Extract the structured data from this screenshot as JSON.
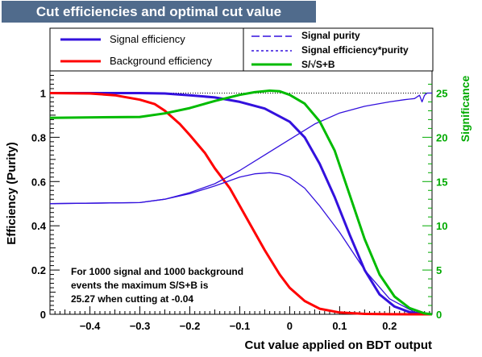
{
  "chart_data": {
    "type": "line",
    "title": "Cut efficiencies and optimal cut value",
    "xlabel": "Cut value applied on BDT output",
    "ylabel": "Efficiency (Purity)",
    "y2label": "Significance",
    "xlim": [
      -0.48,
      0.285
    ],
    "ylim": [
      0,
      1.1
    ],
    "y2lim": [
      0,
      27.5
    ],
    "x_ticks": [
      -0.4,
      -0.3,
      -0.2,
      -0.1,
      0,
      0.1,
      0.2
    ],
    "x_tick_labels": [
      "−0.4",
      "−0.3",
      "−0.2",
      "−0.1",
      "0",
      "0.1",
      "0.2"
    ],
    "y_ticks": [
      0,
      0.2,
      0.4,
      0.6,
      0.8,
      1
    ],
    "y_tick_labels": [
      "0",
      "0.2",
      "0.4",
      "0.6",
      "0.8",
      "1"
    ],
    "y2_ticks": [
      0,
      5,
      10,
      15,
      20,
      25
    ],
    "y2_tick_labels": [
      "0",
      "5",
      "10",
      "15",
      "20",
      "25"
    ],
    "colors": {
      "title_box": "#506b8c",
      "signal": "#3311dd",
      "background": "#ff0000",
      "significance": "#00bb00",
      "significance_axis": "#00aa00",
      "ref_line": "#000000"
    },
    "series": [
      {
        "name": "Signal efficiency",
        "style": "solid-thick",
        "axis": "left",
        "x": [
          -0.48,
          -0.4,
          -0.3,
          -0.25,
          -0.2,
          -0.15,
          -0.1,
          -0.05,
          0,
          0.03,
          0.06,
          0.09,
          0.12,
          0.15,
          0.18,
          0.21,
          0.24,
          0.26,
          0.285
        ],
        "values": [
          1.0,
          1.0,
          1.0,
          0.998,
          0.99,
          0.98,
          0.96,
          0.93,
          0.87,
          0.8,
          0.68,
          0.53,
          0.36,
          0.2,
          0.09,
          0.035,
          0.01,
          0.003,
          0
        ]
      },
      {
        "name": "Background efficiency",
        "style": "solid-thick",
        "axis": "left",
        "x": [
          -0.48,
          -0.4,
          -0.35,
          -0.3,
          -0.27,
          -0.25,
          -0.22,
          -0.2,
          -0.17,
          -0.15,
          -0.12,
          -0.1,
          -0.08,
          -0.05,
          -0.02,
          0,
          0.03,
          0.06,
          0.1,
          0.15,
          0.2,
          0.285
        ],
        "values": [
          1.0,
          0.998,
          0.99,
          0.97,
          0.95,
          0.92,
          0.86,
          0.81,
          0.73,
          0.66,
          0.57,
          0.49,
          0.41,
          0.29,
          0.18,
          0.12,
          0.06,
          0.025,
          0.008,
          0.002,
          0.0005,
          0
        ]
      },
      {
        "name": "Signal purity",
        "style": "dashed",
        "axis": "left",
        "x": [
          -0.48,
          -0.3,
          -0.25,
          -0.2,
          -0.15,
          -0.1,
          -0.05,
          0,
          0.05,
          0.1,
          0.15,
          0.2,
          0.23,
          0.25,
          0.26,
          0.265,
          0.27,
          0.275,
          0.285
        ],
        "values": [
          0.5,
          0.505,
          0.52,
          0.55,
          0.59,
          0.65,
          0.72,
          0.79,
          0.86,
          0.91,
          0.94,
          0.96,
          0.97,
          0.975,
          0.99,
          0.96,
          0.99,
          1.0,
          1.0
        ]
      },
      {
        "name": "Signal efficiency*purity",
        "style": "dotted",
        "axis": "left",
        "x": [
          -0.48,
          -0.3,
          -0.25,
          -0.2,
          -0.15,
          -0.1,
          -0.07,
          -0.04,
          -0.02,
          0,
          0.03,
          0.06,
          0.1,
          0.15,
          0.2,
          0.25,
          0.285
        ],
        "values": [
          0.5,
          0.505,
          0.52,
          0.545,
          0.58,
          0.62,
          0.635,
          0.64,
          0.635,
          0.62,
          0.57,
          0.49,
          0.37,
          0.2,
          0.07,
          0.01,
          0
        ]
      },
      {
        "name": "S/√S+B",
        "style": "solid-thick",
        "axis": "right",
        "x": [
          -0.48,
          -0.3,
          -0.25,
          -0.2,
          -0.15,
          -0.1,
          -0.07,
          -0.04,
          -0.02,
          0,
          0.03,
          0.06,
          0.09,
          0.12,
          0.15,
          0.18,
          0.21,
          0.24,
          0.27,
          0.285
        ],
        "values": [
          22.2,
          22.3,
          22.7,
          23.3,
          24.1,
          24.8,
          25.1,
          25.27,
          25.2,
          24.8,
          23.8,
          21.8,
          18.5,
          13.5,
          8.5,
          4.5,
          2.0,
          0.7,
          0.1,
          0
        ]
      }
    ],
    "annotation": {
      "line1": "For 1000 signal and 1000 background",
      "line2_prefix": "events the maximum S/",
      "line2_rad": "S+B",
      "line2_suffix": " is",
      "line3": "25.27 when cutting at -0.04"
    },
    "legend_left": [
      "Signal efficiency",
      "Background efficiency"
    ],
    "legend_right": [
      "Signal purity",
      "Signal efficiency*purity",
      "S/√S+B"
    ]
  }
}
